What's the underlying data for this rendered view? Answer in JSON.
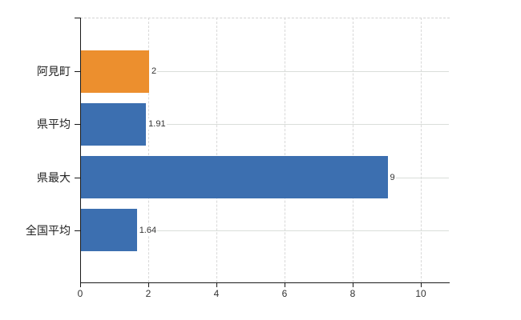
{
  "chart_data": {
    "type": "bar",
    "orientation": "horizontal",
    "title": "",
    "xlabel": "",
    "ylabel": "",
    "categories": [
      "阿見町",
      "県平均",
      "県最大",
      "全国平均"
    ],
    "values": [
      2,
      1.91,
      9,
      1.64
    ],
    "value_labels": [
      "2",
      "1.91",
      "9",
      "1.64"
    ],
    "bar_colors": [
      "#EC8F2E",
      "#3C6FB0",
      "#3C6FB0",
      "#3C6FB0"
    ],
    "xlim": [
      0,
      10.82
    ],
    "x_ticks": [
      0,
      2,
      4,
      6,
      8,
      10
    ],
    "x_tick_labels": [
      "0",
      "2",
      "4",
      "6",
      "8",
      "10"
    ],
    "grid": true,
    "legend": false
  },
  "colors": {
    "highlight_bar": "#EC8F2E",
    "default_bar": "#3C6FB0",
    "axis": "#1A1A1A",
    "gridline_vertical": "#D8D8D8",
    "gridline_horizontal": "#DADEDA",
    "text": "#333333",
    "background": "#FFFFFF"
  }
}
